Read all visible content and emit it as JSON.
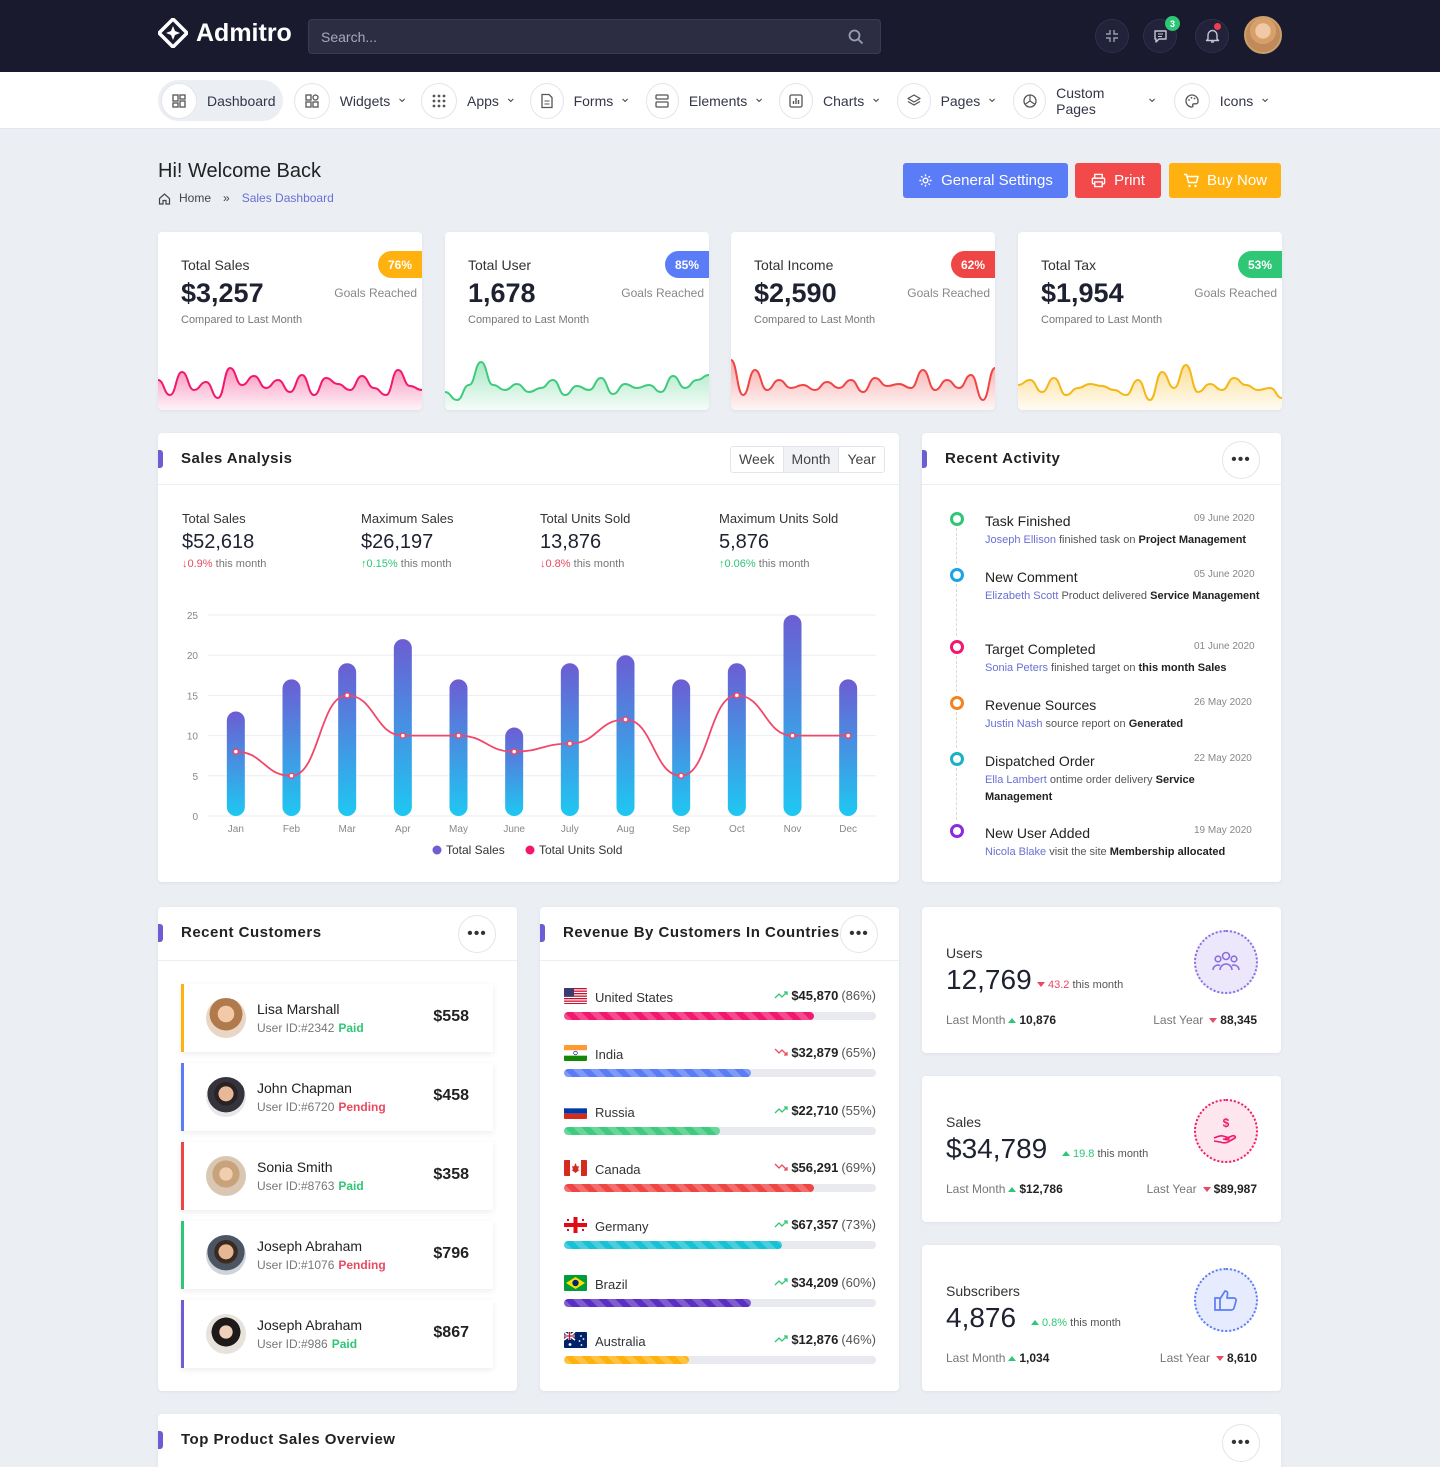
{
  "app": {
    "name": "Admitro"
  },
  "search": {
    "placeholder": "Search..."
  },
  "topbar": {
    "messages_badge": "3"
  },
  "nav": [
    {
      "label": "Dashboard",
      "icon": "dashboard-icon",
      "active": true
    },
    {
      "label": "Widgets",
      "icon": "widgets-icon"
    },
    {
      "label": "Apps",
      "icon": "apps-grid-icon"
    },
    {
      "label": "Forms",
      "icon": "forms-icon"
    },
    {
      "label": "Elements",
      "icon": "elements-icon"
    },
    {
      "label": "Charts",
      "icon": "charts-icon"
    },
    {
      "label": "Pages",
      "icon": "pages-layers-icon"
    },
    {
      "label": "Custom Pages",
      "icon": "custom-pages-icon"
    },
    {
      "label": "Icons",
      "icon": "palette-icon"
    }
  ],
  "page": {
    "title": "Hi! Welcome Back",
    "crumb_home": "Home",
    "crumb_sep": "»",
    "crumb_current": "Sales Dashboard"
  },
  "actions": {
    "settings": "General Settings",
    "print": "Print",
    "buy": "Buy Now"
  },
  "colors": {
    "accent": "#6c5dd3",
    "settings": "#5b7cf7",
    "print": "#f24a4a",
    "buy": "#ffb20f",
    "dark": "#191a2e"
  },
  "stats": [
    {
      "title": "Total Sales",
      "value": "$3,257",
      "pill": "76%",
      "goal": "Goals Reached",
      "sub": "Compared to Last Month",
      "color": "#f2186d"
    },
    {
      "title": "Total User",
      "value": "1,678",
      "pill": "85%",
      "goal": "Goals Reached",
      "sub": "Compared to Last Month",
      "color": "#3ecb7d"
    },
    {
      "title": "Total Income",
      "value": "$2,590",
      "pill": "62%",
      "goal": "Goals Reached",
      "sub": "Compared to Last Month",
      "color": "#f04545"
    },
    {
      "title": "Total Tax",
      "value": "$1,954",
      "pill": "53%",
      "goal": "Goals Reached",
      "sub": "Compared to Last Month",
      "color": "#f5b715"
    }
  ],
  "pill_colors": [
    "#ffb20f",
    "#5b7cf7",
    "#f04545",
    "#2ec776"
  ],
  "sales_analysis": {
    "title": "Sales Analysis",
    "tabs": [
      "Week",
      "Month",
      "Year"
    ],
    "active_tab": "Month",
    "kpis": [
      {
        "label": "Total Sales",
        "value": "$52,618",
        "change": "0.9%",
        "dir": "down",
        "suffix": "this month"
      },
      {
        "label": "Maximum Sales",
        "value": "$26,197",
        "change": "0.15%",
        "dir": "up",
        "suffix": "this month"
      },
      {
        "label": "Total Units Sold",
        "value": "13,876",
        "change": "0.8%",
        "dir": "down",
        "suffix": "this month"
      },
      {
        "label": "Maximum Units Sold",
        "value": "5,876",
        "change": "0.06%",
        "dir": "up",
        "suffix": "this month"
      }
    ]
  },
  "chart_data": {
    "type": "bar",
    "categories": [
      "Jan",
      "Feb",
      "Mar",
      "Apr",
      "May",
      "June",
      "July",
      "Aug",
      "Sep",
      "Oct",
      "Nov",
      "Dec"
    ],
    "series": [
      {
        "name": "Total Sales",
        "type": "bar",
        "values": [
          13,
          17,
          19,
          22,
          17,
          11,
          19,
          20,
          17,
          19,
          25,
          17
        ],
        "color": "#6c5dd3"
      },
      {
        "name": "Total Units Sold",
        "type": "line",
        "values": [
          8,
          5,
          15,
          10,
          10,
          8,
          9,
          12,
          5,
          15,
          10,
          10
        ],
        "color": "#f2186d"
      }
    ],
    "ylim": [
      0,
      25
    ],
    "yticks": [
      0,
      5,
      10,
      15,
      20,
      25
    ],
    "grid": true,
    "legend": "bottom"
  },
  "activity": {
    "title": "Recent Activity",
    "items": [
      {
        "title": "Task Finished",
        "date": "09 June 2020",
        "name": "Joseph Ellison",
        "text": "finished task on",
        "bold": "Project Management",
        "color": "#2ec776"
      },
      {
        "title": "New Comment",
        "date": "05 June 2020",
        "name": "Elizabeth Scott",
        "text": "Product delivered",
        "bold": "Service Management",
        "color": "#1aa3e6"
      },
      {
        "title": "Target Completed",
        "date": "01 June 2020",
        "name": "Sonia Peters",
        "text": "finished target on",
        "bold": "this month Sales",
        "color": "#f2186d"
      },
      {
        "title": "Revenue Sources",
        "date": "26 May 2020",
        "name": "Justin Nash",
        "text": "source report on",
        "bold": "Generated",
        "color": "#f58220"
      },
      {
        "title": "Dispatched Order",
        "date": "22 May 2020",
        "name": "Ella Lambert",
        "text": "ontime order delivery",
        "bold": "Service Management",
        "color": "#17b3c1"
      },
      {
        "title": "New User Added",
        "date": "19 May 2020",
        "name": "Nicola Blake",
        "text": "visit the site",
        "bold": "Membership allocated",
        "color": "#8a2be2"
      }
    ]
  },
  "customers": {
    "title": "Recent Customers",
    "items": [
      {
        "name": "Lisa Marshall",
        "id": "User ID:#2342",
        "status": "Paid",
        "amount": "$558",
        "color": "#ffb20f"
      },
      {
        "name": "John Chapman",
        "id": "User ID:#6720",
        "status": "Pending",
        "amount": "$458",
        "color": "#5b7cf7"
      },
      {
        "name": "Sonia Smith",
        "id": "User ID:#8763",
        "status": "Paid",
        "amount": "$358",
        "color": "#f04545"
      },
      {
        "name": "Joseph Abraham",
        "id": "User ID:#1076",
        "status": "Pending",
        "amount": "$796",
        "color": "#2ec776"
      },
      {
        "name": "Joseph Abraham",
        "id": "User ID:#986",
        "status": "Paid",
        "amount": "$867",
        "color": "#6c5dd3"
      }
    ]
  },
  "countries": {
    "title": "Revenue By Customers In Countries",
    "items": [
      {
        "name": "United States",
        "value": "$45,870",
        "pct": "(86%)",
        "progress": 0.8,
        "trend": "up",
        "color": "#f2186d"
      },
      {
        "name": "India",
        "value": "$32,879",
        "pct": "(65%)",
        "progress": 0.6,
        "trend": "down",
        "color": "#5b7cf7"
      },
      {
        "name": "Russia",
        "value": "$22,710",
        "pct": "(55%)",
        "progress": 0.5,
        "trend": "up",
        "color": "#3ecb7d"
      },
      {
        "name": "Canada",
        "value": "$56,291",
        "pct": "(69%)",
        "progress": 0.8,
        "trend": "down",
        "color": "#f04545"
      },
      {
        "name": "Germany",
        "value": "$67,357",
        "pct": "(73%)",
        "progress": 0.7,
        "trend": "up",
        "color": "#17c1d6"
      },
      {
        "name": "Brazil",
        "value": "$34,209",
        "pct": "(60%)",
        "progress": 0.6,
        "trend": "up",
        "color": "#5a2fc4"
      },
      {
        "name": "Australia",
        "value": "$12,876",
        "pct": "(46%)",
        "progress": 0.4,
        "trend": "up",
        "color": "#ffb20f"
      }
    ]
  },
  "minis": [
    {
      "label": "Users",
      "value": "12,769",
      "change": "43.2",
      "dir": "down",
      "suffix": "this month",
      "last_month": "10,876",
      "last_year": "88,345",
      "lm_label": "Last Month",
      "ly_label": "Last Year",
      "color": "#8a6de0",
      "bg": "#ece7fb",
      "icon": "users-group-icon"
    },
    {
      "label": "Sales",
      "value": "$34,789",
      "change": "19.8",
      "dir": "up",
      "suffix": "this month",
      "last_month": "$12,786",
      "last_year": "$89,987",
      "lm_label": "Last Month",
      "ly_label": "Last Year",
      "color": "#f2186d",
      "bg": "#fde6ee",
      "icon": "dollar-hand-icon"
    },
    {
      "label": "Subscribers",
      "value": "4,876",
      "change": "0.8%",
      "dir": "up",
      "suffix": "this month",
      "last_month": "1,034",
      "last_year": "8,610",
      "lm_label": "Last Month",
      "ly_label": "Last Year",
      "color": "#5b7cf7",
      "bg": "#e6ecfd",
      "icon": "thumbs-up-icon"
    }
  ],
  "top_products": {
    "title": "Top Product Sales Overview"
  }
}
